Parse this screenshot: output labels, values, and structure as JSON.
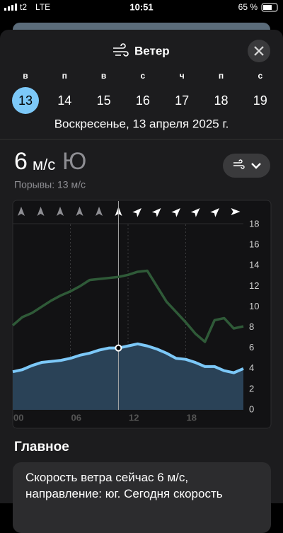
{
  "status": {
    "carrier": "t2",
    "network": "LTE",
    "time": "10:51",
    "battery": "65 %"
  },
  "header": {
    "title": "Ветер"
  },
  "days": {
    "weekdays": [
      "в",
      "п",
      "в",
      "с",
      "ч",
      "п",
      "с"
    ],
    "dates": [
      13,
      14,
      15,
      16,
      17,
      18,
      19
    ]
  },
  "date_line": "Воскресенье, 13 апреля 2025 г.",
  "current": {
    "speed": 6,
    "unit": "м/с",
    "direction": "Ю",
    "gusts": "Порывы: 13 м/с"
  },
  "chart_data": {
    "type": "line",
    "x": [
      0,
      1,
      2,
      3,
      4,
      5,
      6,
      7,
      8,
      9,
      10,
      11,
      12,
      13,
      14,
      15,
      16,
      17,
      18,
      19,
      20,
      21,
      22,
      23,
      24
    ],
    "xlim": [
      0,
      24
    ],
    "xticks": [
      {
        "value": 0,
        "label": "00"
      },
      {
        "value": 6,
        "label": "06"
      },
      {
        "value": 12,
        "label": "12"
      },
      {
        "value": 18,
        "label": "18"
      }
    ],
    "ylim": [
      0,
      18
    ],
    "yticks": [
      0,
      2,
      4,
      6,
      8,
      10,
      12,
      14,
      16,
      18
    ],
    "series": [
      {
        "name": "Ветер",
        "color": "#7cc8f8",
        "values": [
          3.7,
          3.9,
          4.3,
          4.6,
          4.7,
          4.8,
          5.0,
          5.3,
          5.5,
          5.8,
          6.0,
          6.0,
          6.2,
          6.4,
          6.2,
          5.9,
          5.5,
          5.0,
          4.9,
          4.6,
          4.2,
          4.2,
          3.8,
          3.6,
          4.0
        ]
      },
      {
        "name": "Порывы",
        "color": "#2f5a38",
        "values": [
          8.2,
          9.0,
          9.4,
          10.0,
          10.6,
          11.1,
          11.5,
          12.0,
          12.6,
          12.7,
          12.8,
          12.9,
          13.1,
          13.4,
          13.5,
          12.0,
          10.5,
          9.5,
          8.5,
          7.4,
          6.6,
          8.7,
          8.9,
          7.9,
          8.1
        ]
      }
    ]
  },
  "section": {
    "title": "Главное",
    "text": "Скорость ветра сейчас 6 м/с, направление: юг. Сегодня скорость"
  }
}
